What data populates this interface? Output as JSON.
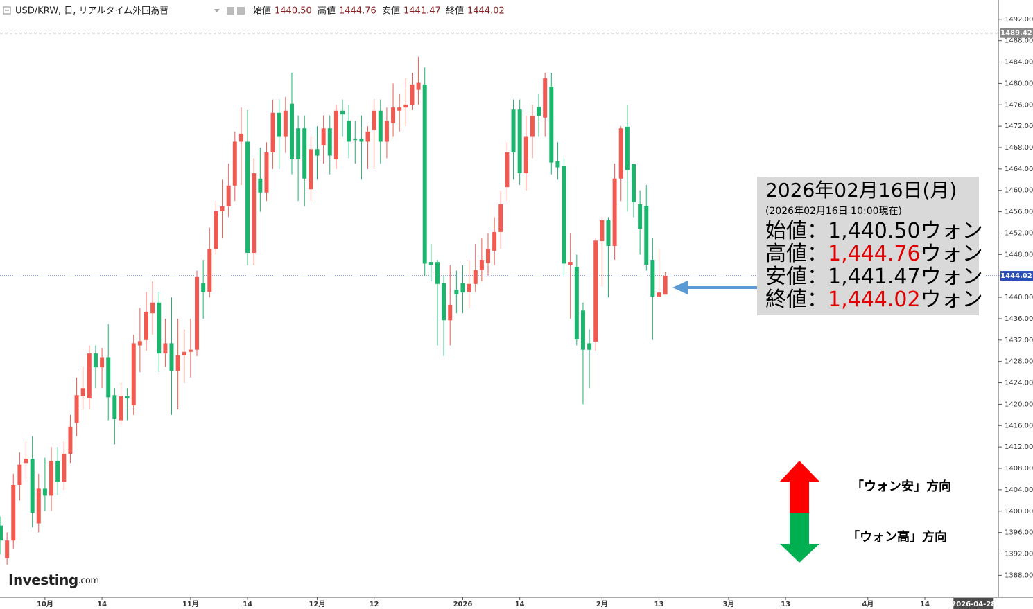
{
  "chart_data": {
    "type": "candlestick",
    "header": {
      "title": "USD/KRW, 日, リアルタイム外国為替",
      "ohlc": [
        {
          "label": "始値",
          "value": "1440.50"
        },
        {
          "label": "高値",
          "value": "1444.76"
        },
        {
          "label": "安値",
          "value": "1441.47"
        },
        {
          "label": "終値",
          "value": "1444.02"
        }
      ]
    },
    "up_color": "#f05a50",
    "down_color": "#1db46e",
    "categories": [
      null,
      null,
      null,
      null,
      null,
      null,
      null,
      "10月",
      null,
      null,
      null,
      null,
      null,
      null,
      null,
      null,
      "14",
      null,
      null,
      null,
      null,
      null,
      null,
      null,
      null,
      null,
      null,
      null,
      null,
      null,
      "11月",
      null,
      null,
      null,
      null,
      null,
      null,
      null,
      null,
      "14",
      null,
      null,
      null,
      null,
      null,
      null,
      null,
      null,
      null,
      null,
      "12月",
      null,
      null,
      null,
      null,
      null,
      null,
      null,
      null,
      "12",
      null,
      null,
      null,
      null,
      null,
      null,
      null,
      null,
      null,
      null,
      null,
      null,
      null,
      "2026",
      null,
      null,
      null,
      null,
      null,
      null,
      null,
      null,
      "14",
      null,
      null,
      null,
      null,
      null,
      null,
      null,
      null,
      null,
      null,
      null,
      null,
      "2月",
      null,
      null,
      null,
      null,
      null,
      null,
      null,
      null,
      "13",
      null,
      null,
      null,
      null,
      null,
      null,
      null,
      null,
      null,
      null,
      "3月",
      null,
      null,
      null,
      null,
      null,
      null,
      null,
      null,
      "13",
      null,
      null,
      null,
      null,
      null,
      null,
      null,
      null,
      null,
      null,
      null,
      null,
      "4月",
      null,
      null,
      null,
      null,
      null,
      null,
      null,
      null,
      "14",
      null,
      null,
      null,
      null,
      null,
      null,
      null,
      null,
      null,
      "2026-04-28"
    ],
    "open": [
      1397.3,
      1391.2,
      1394.5,
      1404.9,
      1409,
      1409.8,
      1397.7,
      1404.2,
      1402.9,
      1409.4,
      1405.5,
      1410.7,
      1416.5,
      1421.5,
      1421.1,
      1429.5,
      1426.9,
      1428.8,
      1421.7,
      1417,
      1421.5,
      1419.8,
      1431,
      1432,
      1437,
      1439,
      1429.5,
      1431.4,
      1426.2,
      1429.2,
      1429.8,
      1430.2,
      1442.7,
      1441,
      1449,
      1456.1,
      1457,
      1460.9,
      1469.1,
      1469.1,
      1448.3,
      1462.2,
      1459.6,
      1467.1,
      1474.5,
      1470,
      1476.2,
      1471.6,
      1471.6,
      1460.2,
      1467.7,
      1468.4,
      1471.6,
      1465.8,
      1474.9,
      1473,
      1469.7,
      1469.7,
      1469.1,
      1471.3,
      1474.9,
      1469.1,
      1472.6,
      1474.9,
      1475.5,
      1475.9,
      1478.8,
      1479.8,
      1446.6,
      1446.6,
      1442.7,
      1435.7,
      1441.4,
      1442.7,
      1441,
      1442.5,
      1445.1,
      1446.4,
      1448.7,
      1452.2,
      1460.6,
      1475.1,
      1475.1,
      1463.2,
      1470,
      1475.6,
      1473.6,
      1479.4,
      1465.5,
      1464.5,
      1446.1,
      1445.7,
      1437.5,
      1431.4,
      1431.7,
      1450.5,
      1454.4,
      1449.6,
      1462.2,
      1471.9,
      1464.9,
      1457.4,
      1457.1,
      1447,
      1440.1,
      1440.5,
      null,
      null,
      null,
      null,
      null,
      null,
      null,
      null,
      null,
      null,
      null,
      null,
      null,
      null,
      null,
      null,
      null,
      null,
      null,
      null,
      null,
      null,
      null,
      null,
      null,
      null,
      null,
      null,
      null,
      null,
      null,
      null,
      null,
      null,
      null,
      null,
      null,
      null,
      null,
      null,
      null,
      null,
      null,
      null,
      null,
      null,
      null,
      null,
      null,
      null,
      null
    ],
    "high": [
      1399,
      1396,
      1407,
      1411,
      1413,
      1414,
      1407,
      1410,
      1412,
      1412,
      1413,
      1418,
      1425,
      1427,
      1431,
      1431,
      1430.5,
      1435,
      1423,
      1424,
      1423,
      1433,
      1438,
      1441,
      1443,
      1441,
      1436,
      1440,
      1436,
      1434,
      1436,
      1445,
      1447,
      1453,
      1458,
      1462,
      1465,
      1471,
      1475.5,
      1475,
      1466,
      1468,
      1469,
      1477,
      1477,
      1477.5,
      1482,
      1474,
      1474,
      1470,
      1472,
      1474,
      1474,
      1476,
      1477,
      1476,
      1473,
      1474,
      1472,
      1477,
      1477,
      1475.5,
      1480,
      1478,
      1481,
      1482,
      1485,
      1483,
      1450,
      1447,
      1444,
      1446,
      1445,
      1446,
      1447,
      1450,
      1451,
      1452,
      1455,
      1460,
      1469,
      1477,
      1477,
      1474,
      1476,
      1478,
      1482,
      1482,
      1469,
      1466,
      1452,
      1448,
      1439,
      1434,
      1451,
      1455,
      1455,
      1465,
      1472,
      1476,
      1465,
      1460,
      1461,
      1451,
      1449,
      1444.76,
      null,
      null,
      null,
      null,
      null,
      null,
      null,
      null,
      null,
      null,
      null,
      null,
      null,
      null,
      null,
      null,
      null,
      null,
      null,
      null,
      null,
      null,
      null,
      null,
      null,
      null,
      null,
      null,
      null,
      null,
      null,
      null,
      null,
      null,
      null,
      null,
      null,
      null,
      null,
      null,
      null,
      null,
      null,
      null,
      null,
      null,
      null,
      null,
      null,
      null,
      null
    ],
    "low": [
      1391.9,
      1390,
      1393,
      1402,
      1406,
      1397,
      1396,
      1400,
      1400,
      1403,
      1404,
      1409,
      1414,
      1419,
      1419,
      1423,
      1423,
      1417,
      1412.5,
      1416,
      1417,
      1418,
      1426,
      1430,
      1433,
      1426,
      1427,
      1418,
      1419,
      1424,
      1425,
      1429,
      1436,
      1440,
      1448,
      1451,
      1455,
      1458,
      1461,
      1446,
      1446,
      1456,
      1458,
      1464,
      1464,
      1467,
      1463,
      1458,
      1457,
      1458,
      1462,
      1465,
      1463,
      1464,
      1470,
      1466,
      1465,
      1462,
      1464,
      1464,
      1465,
      1466,
      1470,
      1471,
      1472,
      1475,
      1476,
      1444,
      1443,
      1431,
      1429,
      1431,
      1437,
      1437,
      1438,
      1441,
      1443,
      1444,
      1446,
      1449,
      1458,
      1462,
      1461,
      1460,
      1466,
      1470,
      1470,
      1463,
      1462,
      1444,
      1436,
      1431,
      1420,
      1423,
      1430,
      1442,
      1440,
      1447,
      1458,
      1456,
      1455,
      1448,
      1445,
      1432,
      1440,
      1441.47,
      null,
      null,
      null,
      null,
      null,
      null,
      null,
      null,
      null,
      null,
      null,
      null,
      null,
      null,
      null,
      null,
      null,
      null,
      null,
      null,
      null,
      null,
      null,
      null,
      null,
      null,
      null,
      null,
      null,
      null,
      null,
      null,
      null,
      null,
      null,
      null,
      null,
      null,
      null,
      null,
      null,
      null,
      null,
      null,
      null,
      null,
      null,
      null,
      null,
      null,
      null
    ],
    "close": [
      1394.5,
      1394.5,
      1404.9,
      1408.7,
      1409.8,
      1399.7,
      1404.2,
      1402.9,
      1409.4,
      1405.5,
      1410.7,
      1415.8,
      1421.7,
      1423,
      1429.5,
      1426.9,
      1428.8,
      1421.3,
      1417.2,
      1421.5,
      1421.1,
      1431.4,
      1431.8,
      1437.3,
      1439,
      1429.5,
      1431.4,
      1426.2,
      1429.2,
      1429.8,
      1430.2,
      1443.8,
      1441,
      1449,
      1456.1,
      1457,
      1460.9,
      1469.1,
      1470.6,
      1448.3,
      1463.2,
      1459.6,
      1467.1,
      1474.5,
      1470,
      1474.9,
      1465.8,
      1465.8,
      1462.2,
      1467.7,
      1466.5,
      1471.6,
      1466.5,
      1474.9,
      1474.2,
      1469.1,
      1469.4,
      1469.1,
      1471,
      1474.9,
      1469.1,
      1473,
      1475.5,
      1475.5,
      1476,
      1479.8,
      1480.1,
      1446.3,
      1446.1,
      1442.5,
      1435.7,
      1438.6,
      1440.6,
      1440.9,
      1442.5,
      1445.1,
      1447,
      1449,
      1452.2,
      1457.4,
      1467.1,
      1467.1,
      1463.2,
      1470,
      1473.9,
      1473.9,
      1481,
      1465.2,
      1464.3,
      1446.3,
      1446.6,
      1432.1,
      1430.2,
      1430.2,
      1450.6,
      1454.4,
      1449.6,
      1462.2,
      1471.6,
      1463.8,
      1457.8,
      1452.8,
      1446.1,
      1440.1,
      1440.9,
      1444.02,
      null,
      null,
      null,
      null,
      null,
      null,
      null,
      null,
      null,
      null,
      null,
      null,
      null,
      null,
      null,
      null,
      null,
      null,
      null,
      null,
      null,
      null,
      null,
      null,
      null,
      null,
      null,
      null,
      null,
      null,
      null,
      null,
      null,
      null,
      null,
      null,
      null,
      null,
      null,
      null,
      null,
      null,
      null,
      null,
      null,
      null,
      null,
      null,
      null,
      null,
      null
    ],
    "ylim": [
      1383.9,
      1495.6
    ],
    "yticks": [
      {
        "value": 1388,
        "label": "1388.00"
      },
      {
        "value": 1392,
        "label": "1392.00"
      },
      {
        "value": 1396,
        "label": "1396.00"
      },
      {
        "value": 1400,
        "label": "1400.00"
      },
      {
        "value": 1404,
        "label": "1404.00"
      },
      {
        "value": 1408,
        "label": "1408.00"
      },
      {
        "value": 1412,
        "label": "1412.00"
      },
      {
        "value": 1416,
        "label": "1416.00"
      },
      {
        "value": 1420,
        "label": "1420.00"
      },
      {
        "value": 1424,
        "label": "1424.00"
      },
      {
        "value": 1428,
        "label": "1428.00"
      },
      {
        "value": 1432,
        "label": "1432.00"
      },
      {
        "value": 1436,
        "label": "1436.00"
      },
      {
        "value": 1440,
        "label": "1440.00"
      },
      {
        "value": 1444,
        "label": "1444.00"
      },
      {
        "value": 1448,
        "label": "1448.00"
      },
      {
        "value": 1452,
        "label": "1452.00"
      },
      {
        "value": 1456,
        "label": "1456.00"
      },
      {
        "value": 1460,
        "label": "1460.00"
      },
      {
        "value": 1464,
        "label": "1464.00"
      },
      {
        "value": 1468,
        "label": "1468.00"
      },
      {
        "value": 1472,
        "label": "1472.00"
      },
      {
        "value": 1476,
        "label": "1476.00"
      },
      {
        "value": 1480,
        "label": "1480.00"
      },
      {
        "value": 1484,
        "label": "1484.00"
      },
      {
        "value": 1488,
        "label": "1488.00"
      },
      {
        "value": 1492,
        "label": "1492.00"
      }
    ],
    "price_lines": [
      {
        "value": 1489.42,
        "color": "#888888",
        "style": "dashed"
      },
      {
        "value": 1444.02,
        "color": "#2a4fb8",
        "style": "dotted"
      }
    ],
    "info_box": {
      "date": "2026年02月16日(月)",
      "as_of": "(2026年02月16日 10:00現在)",
      "rows": [
        {
          "label": "始値：",
          "value": "1,440.50",
          "unit": "ウォン",
          "color": "#000000"
        },
        {
          "label": "高値：",
          "value": "1,444.76",
          "unit": "ウォン",
          "color": "#e00000"
        },
        {
          "label": "安値：",
          "value": "1,441.47",
          "unit": "ウォン",
          "color": "#000000"
        },
        {
          "label": "終値：",
          "value": "1,444.02",
          "unit": "ウォン",
          "color": "#e00000"
        }
      ]
    },
    "annotations": [
      "「ウォン安」方向",
      "「ウォン高」方向"
    ],
    "logo": [
      "Investing",
      ".com"
    ]
  }
}
